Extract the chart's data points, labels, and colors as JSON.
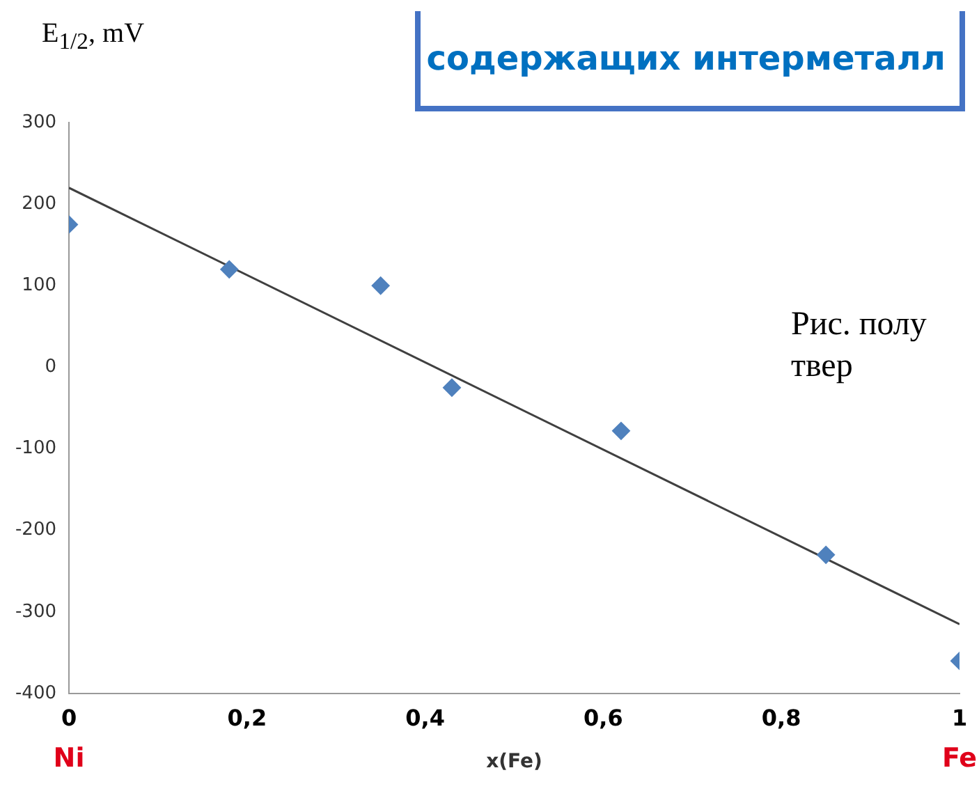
{
  "chart_data": {
    "type": "scatter",
    "ylabel": "E$_{1/2}$, mV",
    "xlabel": "x(Fe)",
    "title": "содержащих интерметалл",
    "annotations": [
      "Ni",
      "Fe",
      "Рис. полу твер"
    ],
    "series": [
      {
        "color": "#4f81bd",
        "marker": "diamond",
        "x": [
          0,
          0.18,
          0.35,
          0.43,
          0.62,
          0.85,
          1
        ],
        "values": [
          175,
          120,
          100,
          -25,
          -78,
          -230,
          -360
        ]
      },
      {
        "type": "line",
        "color": "#404040",
        "marker": "none",
        "x": [
          0,
          1
        ],
        "values": [
          220,
          -315
        ]
      }
    ],
    "xlim": [
      0,
      1
    ],
    "xticks": [
      {
        "value": 0,
        "label": "0"
      },
      {
        "value": 0.2,
        "label": "0,2"
      },
      {
        "value": 0.4,
        "label": "0,4"
      },
      {
        "value": 0.6,
        "label": "0,6"
      },
      {
        "value": 0.8,
        "label": "0,8"
      },
      {
        "value": 1,
        "label": "1"
      }
    ],
    "ylim": [
      -400,
      300
    ],
    "yticks": [
      -400,
      -300,
      -200,
      -100,
      0,
      100,
      200,
      300
    ],
    "grid": false,
    "legend": false
  }
}
